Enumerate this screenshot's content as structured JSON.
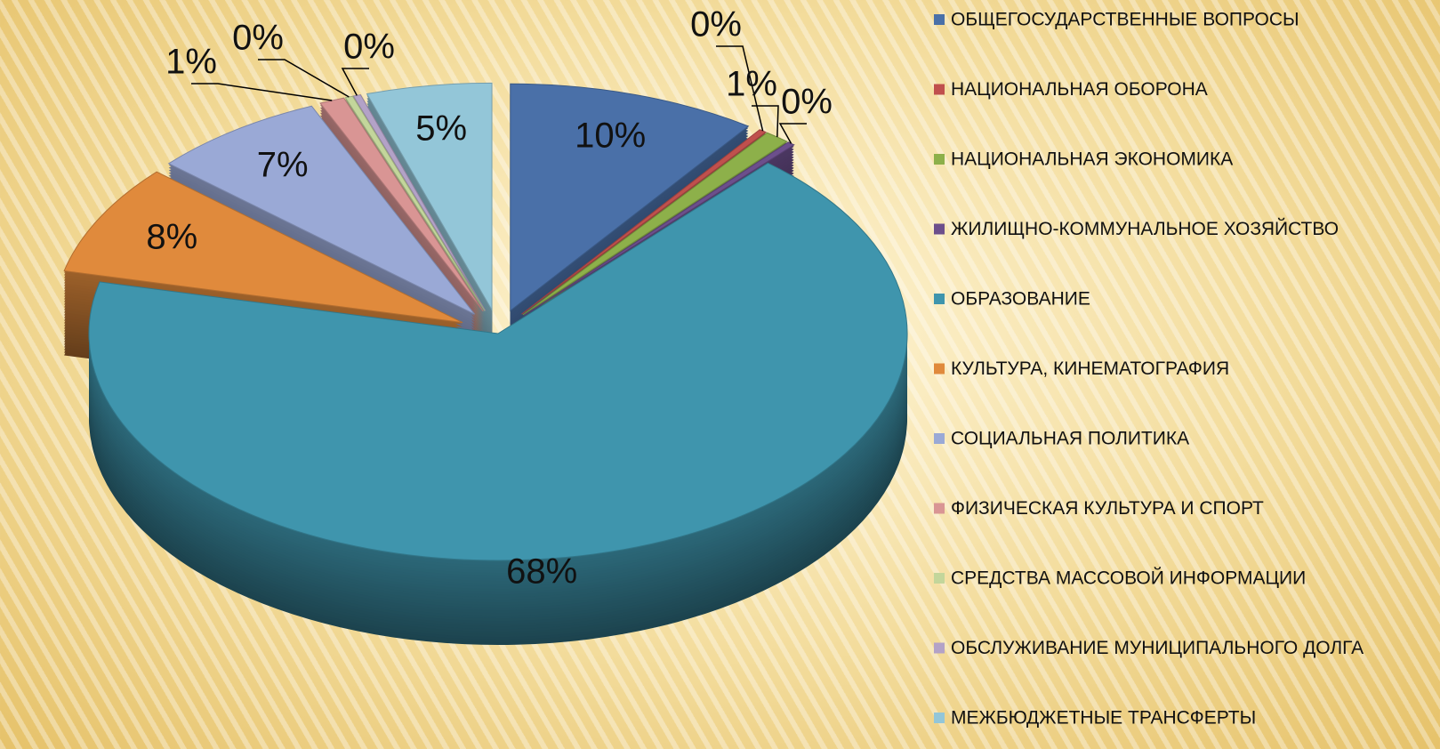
{
  "chart_data": {
    "type": "pie",
    "categories": [
      "ОБЩЕГОСУДАРСТВЕННЫЕ ВОПРОСЫ",
      "НАЦИОНАЛЬНАЯ ОБОРОНА",
      "НАЦИОНАЛЬНАЯ ЭКОНОМИКА",
      "ЖИЛИЩНО-КОММУНАЛЬНОЕ ХОЗЯЙСТВО",
      "ОБРАЗОВАНИЕ",
      "КУЛЬТУРА, КИНЕМАТОГРАФИЯ",
      "СОЦИАЛЬНАЯ ПОЛИТИКА",
      "ФИЗИЧЕСКАЯ КУЛЬТУРА И СПОРТ",
      "СРЕДСТВА МАССОВОЙ ИНФОРМАЦИИ",
      "ОБСЛУЖИВАНИЕ МУНИЦИПАЛЬНОГО ДОЛГА",
      "МЕЖБЮДЖЕТНЫЕ ТРАНСФЕРТЫ"
    ],
    "values": [
      10,
      0.3,
      1,
      0.3,
      68,
      8,
      7,
      1,
      0.3,
      0.3,
      5
    ],
    "value_labels": [
      "10%",
      "0%",
      "1%",
      "0%",
      "68%",
      "8%",
      "7%",
      "1%",
      "0%",
      "0%",
      "5%"
    ],
    "colors": [
      "#4a70a8",
      "#c0504d",
      "#8db04a",
      "#6c4f8c",
      "#3f95ad",
      "#e08a3c",
      "#9aa9d6",
      "#d99594",
      "#c3d69b",
      "#b3a2c7",
      "#93c6d8"
    ],
    "legend": "right"
  }
}
